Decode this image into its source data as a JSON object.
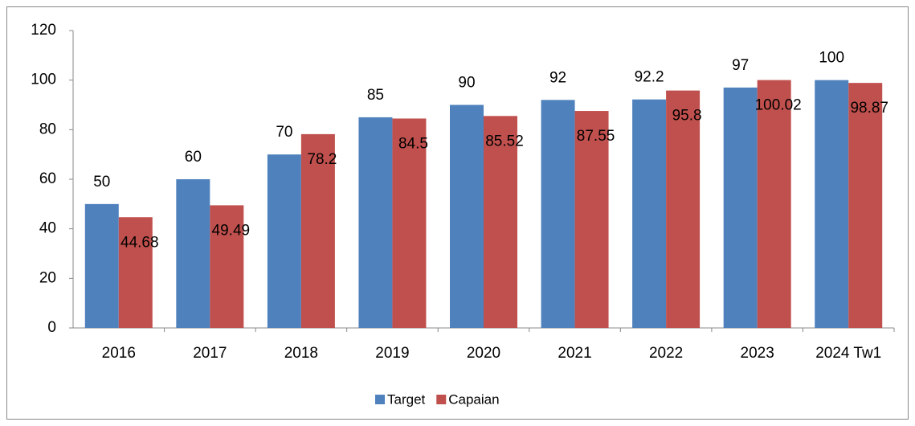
{
  "chart_data": {
    "type": "bar",
    "categories": [
      "2016",
      "2017",
      "2018",
      "2019",
      "2020",
      "2021",
      "2022",
      "2023",
      "2024 Tw1"
    ],
    "series": [
      {
        "name": "Target",
        "color": "#4f81bd",
        "values": [
          50,
          60,
          70,
          85,
          90,
          92,
          92.2,
          97,
          100
        ]
      },
      {
        "name": "Capaian",
        "color": "#c0504d",
        "values": [
          44.68,
          49.49,
          78.2,
          84.5,
          85.52,
          87.55,
          95.8,
          100.02,
          98.87
        ]
      }
    ],
    "ylim": [
      0,
      120
    ],
    "yticks": [
      0,
      20,
      40,
      60,
      80,
      100,
      120
    ],
    "grid": false,
    "legend": "bottom"
  }
}
